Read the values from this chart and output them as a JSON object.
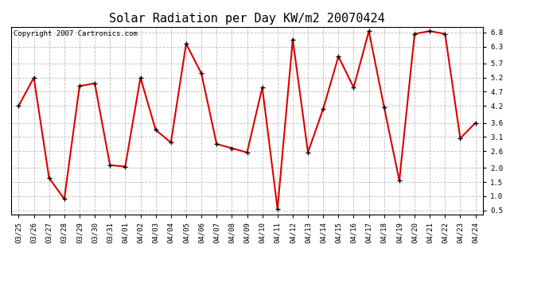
{
  "title": "Solar Radiation per Day KW/m2 20070424",
  "copyright": "Copyright 2007 Cartronics.com",
  "dates": [
    "03/25",
    "03/26",
    "03/27",
    "03/28",
    "03/29",
    "03/30",
    "03/31",
    "04/01",
    "04/02",
    "04/03",
    "04/04",
    "04/05",
    "04/06",
    "04/07",
    "04/08",
    "04/09",
    "04/10",
    "04/11",
    "04/12",
    "04/13",
    "04/14",
    "04/15",
    "04/16",
    "04/17",
    "04/18",
    "04/19",
    "04/20",
    "04/21",
    "04/22",
    "04/23",
    "04/24"
  ],
  "values": [
    4.2,
    5.2,
    1.65,
    0.9,
    4.9,
    5.0,
    2.1,
    2.05,
    5.2,
    3.35,
    2.9,
    6.4,
    5.35,
    2.85,
    2.7,
    2.55,
    4.85,
    0.55,
    6.55,
    2.55,
    4.1,
    5.95,
    4.85,
    6.85,
    4.15,
    1.55,
    6.75,
    6.85,
    6.75,
    3.05,
    3.6
  ],
  "line_color": "#dd0000",
  "marker": "+",
  "marker_color": "#000000",
  "bg_color": "#ffffff",
  "plot_bg_color": "#ffffff",
  "grid_color": "#bbbbbb",
  "yticks": [
    0.5,
    1.0,
    1.5,
    2.0,
    2.6,
    3.1,
    3.6,
    4.2,
    4.7,
    5.2,
    5.7,
    6.3,
    6.8
  ],
  "title_fontsize": 11,
  "copyright_fontsize": 6.5,
  "tick_fontsize": 6.5,
  "linewidth": 1.5,
  "marker_size": 4
}
